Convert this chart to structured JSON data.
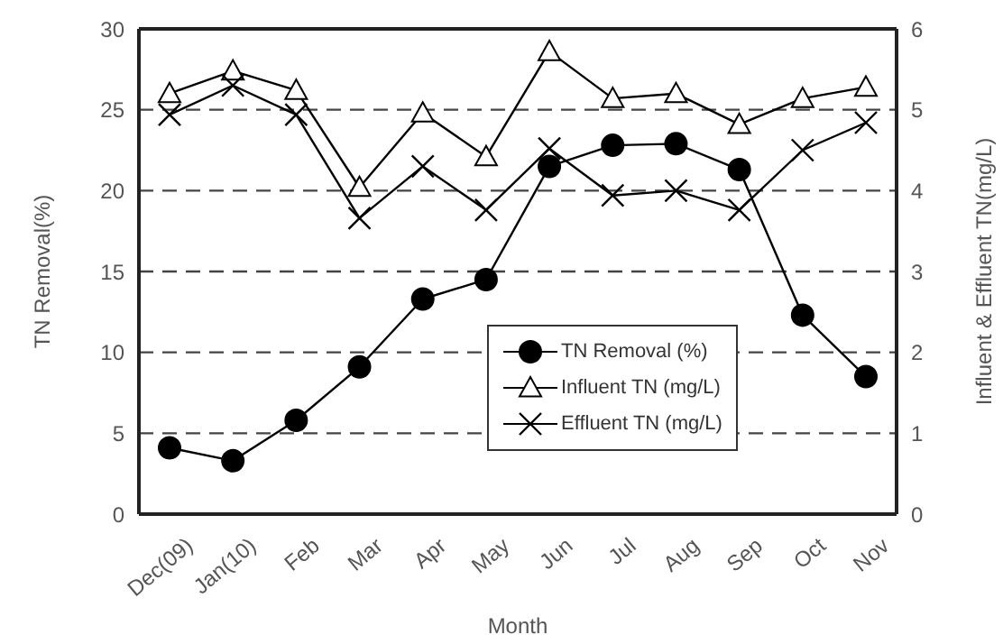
{
  "chart_data": {
    "type": "line",
    "xlabel": "Month",
    "ylabel": "TN Removal(%)",
    "y2label": "Influent & Effluent TN(mg/L)",
    "categories": [
      "Dec(09)",
      "Jan(10)",
      "Feb",
      "Mar",
      "Apr",
      "May",
      "Jun",
      "Jul",
      "Aug",
      "Sep",
      "Oct",
      "Nov"
    ],
    "series": [
      {
        "name": "TN Removal (%)",
        "color": "#000000",
        "marker": "circle",
        "values": [
          4.1,
          3.3,
          5.8,
          9.1,
          13.3,
          14.5,
          21.5,
          22.8,
          22.9,
          21.3,
          12.3,
          8.5
        ]
      },
      {
        "name": "Influent TN (mg/L)",
        "color": "#000000",
        "marker": "triangle",
        "axis": "y2",
        "values": [
          5.2,
          5.48,
          5.24,
          4.04,
          4.96,
          4.42,
          5.72,
          5.14,
          5.2,
          4.82,
          5.14,
          5.28
        ]
      },
      {
        "name": "Effluent TN (mg/L)",
        "color": "#000000",
        "marker": "cross",
        "axis": "y2",
        "values": [
          4.94,
          5.3,
          4.94,
          3.66,
          4.3,
          3.76,
          4.52,
          3.94,
          4.0,
          3.76,
          4.5,
          4.84
        ]
      }
    ],
    "ylim": [
      0,
      30
    ],
    "yticks": [
      0,
      5,
      10,
      15,
      20,
      25,
      30
    ],
    "y2lim": [
      0,
      6
    ],
    "y2ticks": [
      0,
      1,
      2,
      3,
      4,
      5,
      6
    ],
    "grid": "y",
    "legend": "bottom right",
    "line_style": "solid"
  }
}
